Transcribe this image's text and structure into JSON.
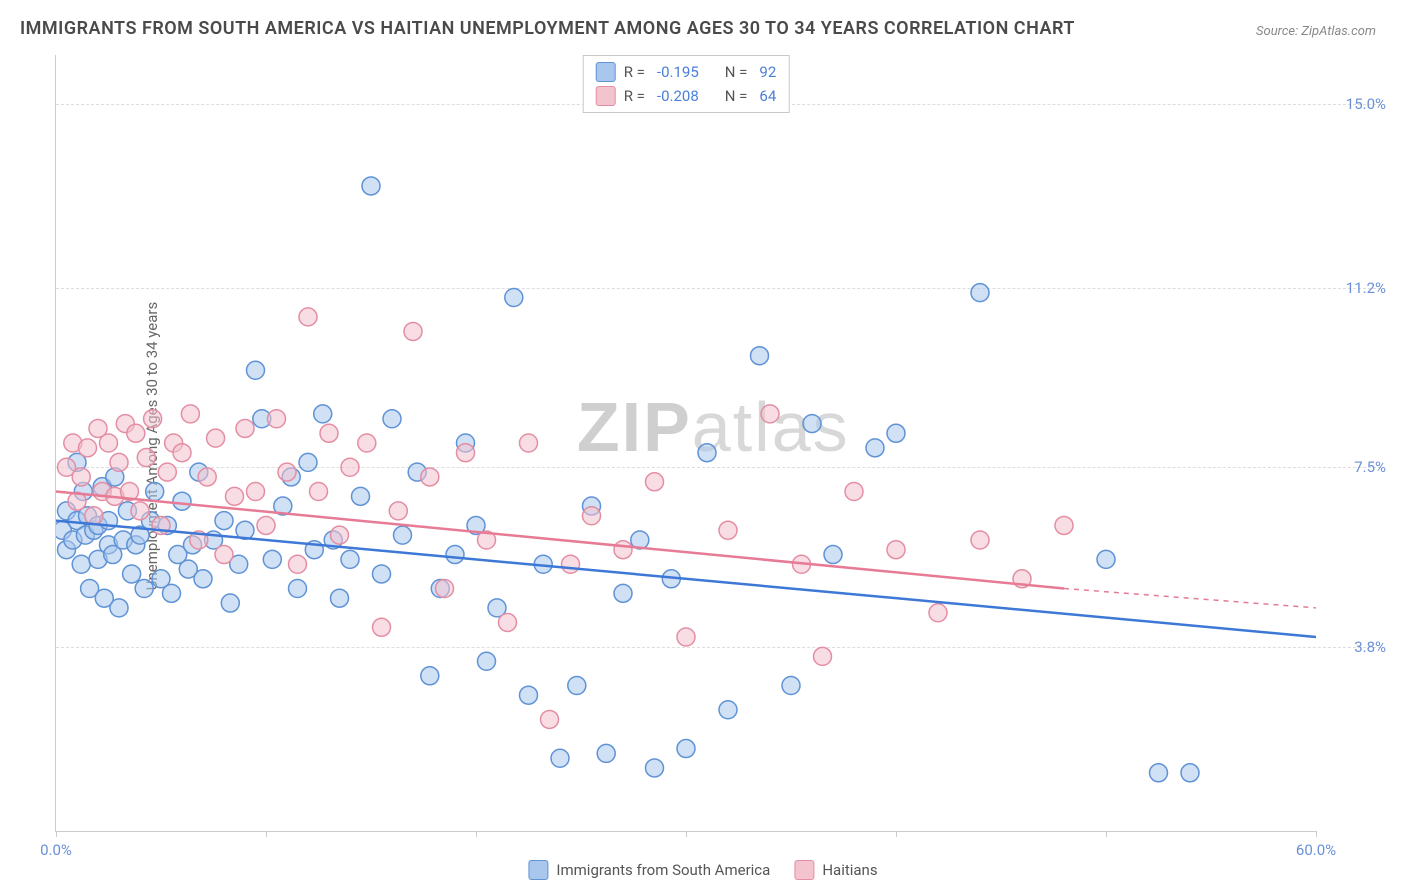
{
  "title": "IMMIGRANTS FROM SOUTH AMERICA VS HAITIAN UNEMPLOYMENT AMONG AGES 30 TO 34 YEARS CORRELATION CHART",
  "source": "Source: ZipAtlas.com",
  "y_axis_label": "Unemployment Among Ages 30 to 34 years",
  "watermark_bold": "ZIP",
  "watermark_light": "atlas",
  "chart": {
    "type": "scatter",
    "xlim": [
      0,
      60
    ],
    "ylim": [
      0,
      16
    ],
    "x_ticks": [
      0,
      10,
      20,
      30,
      40,
      50,
      60
    ],
    "x_tick_labels_shown": {
      "0": "0.0%",
      "60": "60.0%"
    },
    "y_ticks": [
      {
        "v": 3.8,
        "label": "3.8%"
      },
      {
        "v": 7.5,
        "label": "7.5%"
      },
      {
        "v": 11.2,
        "label": "11.2%"
      },
      {
        "v": 15.0,
        "label": "15.0%"
      }
    ],
    "grid_color": "#dddddd",
    "background_color": "#ffffff",
    "marker_radius": 9,
    "marker_opacity": 0.55,
    "marker_stroke_width": 1.5,
    "trend_line_width": 2.5,
    "series": [
      {
        "key": "south_america",
        "label": "Immigrants from South America",
        "fill_color": "#a9c7ec",
        "stroke_color": "#5f93d6",
        "trend_color": "#3d78d6",
        "R": "-0.195",
        "N": "92",
        "trend": {
          "x1": 0,
          "y1": 6.4,
          "x2": 60,
          "y2": 4.0,
          "dash_after_x": 60
        },
        "points": [
          [
            0.3,
            6.2
          ],
          [
            0.5,
            5.8
          ],
          [
            0.5,
            6.6
          ],
          [
            0.8,
            6.0
          ],
          [
            1.0,
            6.4
          ],
          [
            1.0,
            7.6
          ],
          [
            1.2,
            5.5
          ],
          [
            1.3,
            7.0
          ],
          [
            1.4,
            6.1
          ],
          [
            1.5,
            6.5
          ],
          [
            1.6,
            5.0
          ],
          [
            1.8,
            6.2
          ],
          [
            2.0,
            5.6
          ],
          [
            2.0,
            6.3
          ],
          [
            2.2,
            7.1
          ],
          [
            2.3,
            4.8
          ],
          [
            2.5,
            5.9
          ],
          [
            2.5,
            6.4
          ],
          [
            2.7,
            5.7
          ],
          [
            2.8,
            7.3
          ],
          [
            3.0,
            4.6
          ],
          [
            3.2,
            6.0
          ],
          [
            3.4,
            6.6
          ],
          [
            3.6,
            5.3
          ],
          [
            3.8,
            5.9
          ],
          [
            4.0,
            6.1
          ],
          [
            4.2,
            5.0
          ],
          [
            4.5,
            6.4
          ],
          [
            4.7,
            7.0
          ],
          [
            5.0,
            5.2
          ],
          [
            5.3,
            6.3
          ],
          [
            5.5,
            4.9
          ],
          [
            5.8,
            5.7
          ],
          [
            6.0,
            6.8
          ],
          [
            6.3,
            5.4
          ],
          [
            6.5,
            5.9
          ],
          [
            6.8,
            7.4
          ],
          [
            7.0,
            5.2
          ],
          [
            7.5,
            6.0
          ],
          [
            8.0,
            6.4
          ],
          [
            8.3,
            4.7
          ],
          [
            8.7,
            5.5
          ],
          [
            9.0,
            6.2
          ],
          [
            9.5,
            9.5
          ],
          [
            9.8,
            8.5
          ],
          [
            10.3,
            5.6
          ],
          [
            10.8,
            6.7
          ],
          [
            11.2,
            7.3
          ],
          [
            11.5,
            5.0
          ],
          [
            12.0,
            7.6
          ],
          [
            12.3,
            5.8
          ],
          [
            12.7,
            8.6
          ],
          [
            13.2,
            6.0
          ],
          [
            13.5,
            4.8
          ],
          [
            14.0,
            5.6
          ],
          [
            14.5,
            6.9
          ],
          [
            15.0,
            13.3
          ],
          [
            15.5,
            5.3
          ],
          [
            16.0,
            8.5
          ],
          [
            16.5,
            6.1
          ],
          [
            17.2,
            7.4
          ],
          [
            17.8,
            3.2
          ],
          [
            18.3,
            5.0
          ],
          [
            19.0,
            5.7
          ],
          [
            19.5,
            8.0
          ],
          [
            20.0,
            6.3
          ],
          [
            20.5,
            3.5
          ],
          [
            21.0,
            4.6
          ],
          [
            21.8,
            11.0
          ],
          [
            22.5,
            2.8
          ],
          [
            23.2,
            5.5
          ],
          [
            24.0,
            1.5
          ],
          [
            24.8,
            3.0
          ],
          [
            25.5,
            6.7
          ],
          [
            26.2,
            1.6
          ],
          [
            27.0,
            4.9
          ],
          [
            27.8,
            6.0
          ],
          [
            28.5,
            1.3
          ],
          [
            29.3,
            5.2
          ],
          [
            30.0,
            1.7
          ],
          [
            31.0,
            7.8
          ],
          [
            32.0,
            2.5
          ],
          [
            33.5,
            9.8
          ],
          [
            35.0,
            3.0
          ],
          [
            36.0,
            8.4
          ],
          [
            37.0,
            5.7
          ],
          [
            39.0,
            7.9
          ],
          [
            40.0,
            8.2
          ],
          [
            44.0,
            11.1
          ],
          [
            52.5,
            1.2
          ],
          [
            54.0,
            1.2
          ],
          [
            50.0,
            5.6
          ]
        ]
      },
      {
        "key": "haitians",
        "label": "Haitians",
        "fill_color": "#f3c3ce",
        "stroke_color": "#e48ea3",
        "trend_color": "#e77a94",
        "R": "-0.208",
        "N": "64",
        "trend": {
          "x1": 0,
          "y1": 7.0,
          "x2": 48,
          "y2": 5.0,
          "dash_after_x": 48,
          "dash_x2": 60,
          "dash_y2": 4.6
        },
        "points": [
          [
            0.5,
            7.5
          ],
          [
            0.8,
            8.0
          ],
          [
            1.0,
            6.8
          ],
          [
            1.2,
            7.3
          ],
          [
            1.5,
            7.9
          ],
          [
            1.8,
            6.5
          ],
          [
            2.0,
            8.3
          ],
          [
            2.2,
            7.0
          ],
          [
            2.5,
            8.0
          ],
          [
            2.8,
            6.9
          ],
          [
            3.0,
            7.6
          ],
          [
            3.3,
            8.4
          ],
          [
            3.5,
            7.0
          ],
          [
            3.8,
            8.2
          ],
          [
            4.0,
            6.6
          ],
          [
            4.3,
            7.7
          ],
          [
            4.6,
            8.5
          ],
          [
            5.0,
            6.3
          ],
          [
            5.3,
            7.4
          ],
          [
            5.6,
            8.0
          ],
          [
            6.0,
            7.8
          ],
          [
            6.4,
            8.6
          ],
          [
            6.8,
            6.0
          ],
          [
            7.2,
            7.3
          ],
          [
            7.6,
            8.1
          ],
          [
            8.0,
            5.7
          ],
          [
            8.5,
            6.9
          ],
          [
            9.0,
            8.3
          ],
          [
            9.5,
            7.0
          ],
          [
            10.0,
            6.3
          ],
          [
            10.5,
            8.5
          ],
          [
            11.0,
            7.4
          ],
          [
            11.5,
            5.5
          ],
          [
            12.0,
            10.6
          ],
          [
            12.5,
            7.0
          ],
          [
            13.0,
            8.2
          ],
          [
            13.5,
            6.1
          ],
          [
            14.0,
            7.5
          ],
          [
            14.8,
            8.0
          ],
          [
            15.5,
            4.2
          ],
          [
            16.3,
            6.6
          ],
          [
            17.0,
            10.3
          ],
          [
            17.8,
            7.3
          ],
          [
            18.5,
            5.0
          ],
          [
            19.5,
            7.8
          ],
          [
            20.5,
            6.0
          ],
          [
            21.5,
            4.3
          ],
          [
            22.5,
            8.0
          ],
          [
            23.5,
            2.3
          ],
          [
            24.5,
            5.5
          ],
          [
            25.5,
            6.5
          ],
          [
            27.0,
            5.8
          ],
          [
            28.5,
            7.2
          ],
          [
            30.0,
            4.0
          ],
          [
            32.0,
            6.2
          ],
          [
            34.0,
            8.6
          ],
          [
            35.5,
            5.5
          ],
          [
            36.5,
            3.6
          ],
          [
            38.0,
            7.0
          ],
          [
            40.0,
            5.8
          ],
          [
            42.0,
            4.5
          ],
          [
            44.0,
            6.0
          ],
          [
            46.0,
            5.2
          ],
          [
            48.0,
            6.3
          ]
        ]
      }
    ]
  },
  "legend_top": {
    "r_label": "R =",
    "n_label": "N ="
  },
  "legend_bottom": [
    {
      "swatch_key": "south_america"
    },
    {
      "swatch_key": "haitians"
    }
  ]
}
